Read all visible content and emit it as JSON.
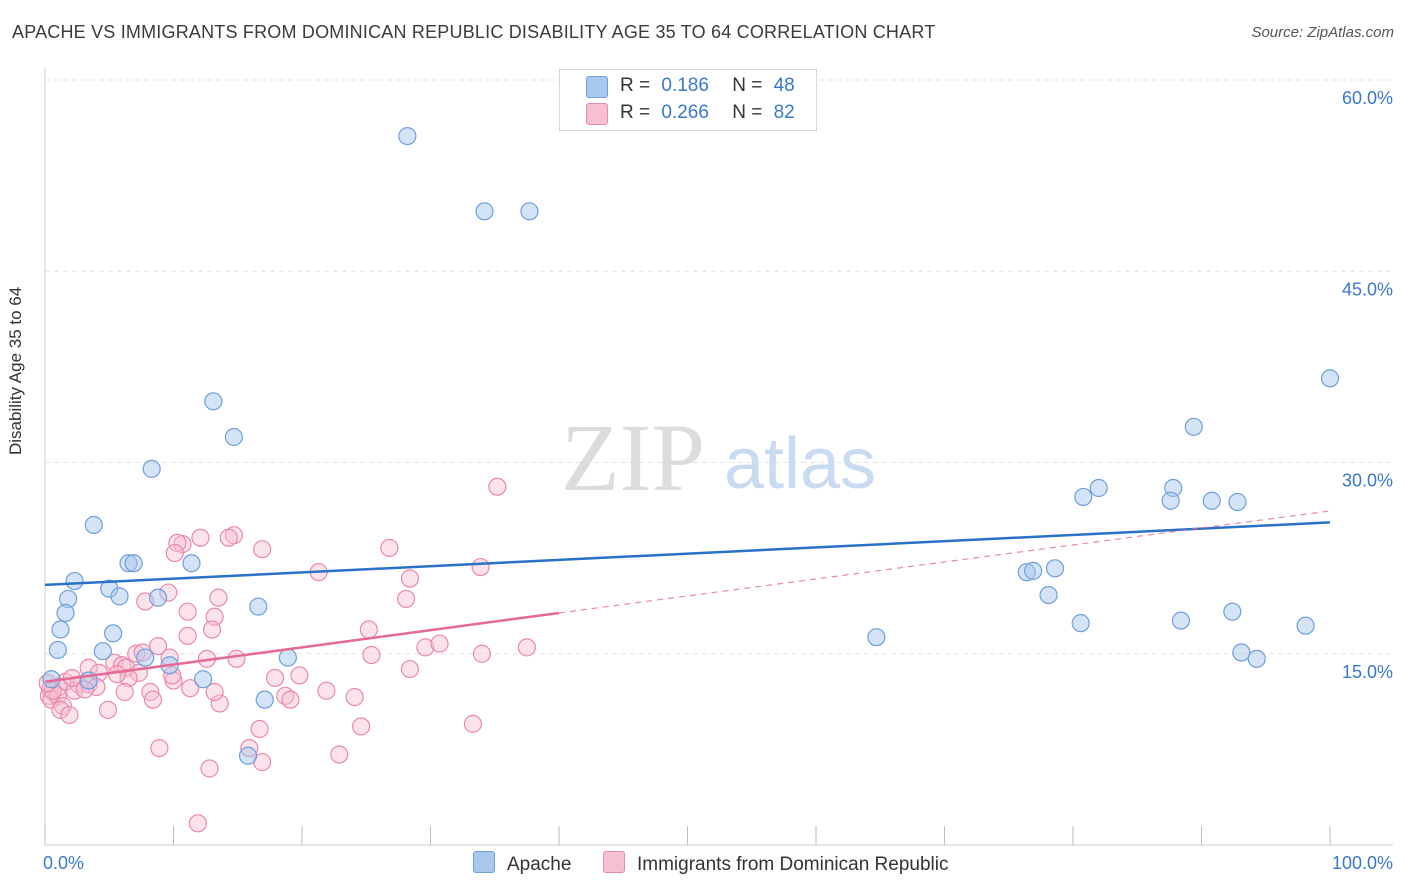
{
  "title": "APACHE VS IMMIGRANTS FROM DOMINICAN REPUBLIC DISABILITY AGE 35 TO 64 CORRELATION CHART",
  "source": "Source: ZipAtlas.com",
  "watermark": {
    "zip": "ZIP",
    "atlas": "atlas"
  },
  "colors": {
    "apache_fill": "#a9c8ee",
    "apache_stroke": "#6f9fdc",
    "apache_line": "#2a72c8",
    "dom_fill": "#f6bfd2",
    "dom_stroke": "#e98aab",
    "dom_line": "#e56b96",
    "axis_text": "#3a78c9"
  },
  "legend": {
    "r_label": "R =",
    "n_label": "N =",
    "apache": {
      "r": "0.186",
      "n": "48"
    },
    "dominican": {
      "r": "0.266",
      "n": "82"
    }
  },
  "chart_data": {
    "type": "scatter",
    "title": "APACHE VS IMMIGRANTS FROM DOMINICAN REPUBLIC DISABILITY AGE 35 TO 64 CORRELATION CHART",
    "xlabel": "",
    "ylabel": "Disability Age 35 to 64",
    "xlim": [
      0,
      100
    ],
    "ylim": [
      0,
      60
    ],
    "x_tick_labels": [
      "0.0%",
      "100.0%"
    ],
    "y_ticks": [
      15,
      30,
      45,
      60
    ],
    "y_tick_labels": [
      "15.0%",
      "30.0%",
      "45.0%",
      "60.0%"
    ],
    "grid": true,
    "series": [
      {
        "name": "Apache",
        "r": 0.186,
        "n": 48,
        "trend": {
          "x": [
            0,
            100
          ],
          "y": [
            20.4,
            25.3
          ]
        },
        "points": [
          [
            28.2,
            55.6
          ],
          [
            34.2,
            49.7
          ],
          [
            37.7,
            49.7
          ],
          [
            100.0,
            36.6
          ],
          [
            13.1,
            34.8
          ],
          [
            14.7,
            32.0
          ],
          [
            8.3,
            29.5
          ],
          [
            89.4,
            32.8
          ],
          [
            82.0,
            28.0
          ],
          [
            80.8,
            27.3
          ],
          [
            87.8,
            28.0
          ],
          [
            87.6,
            27.0
          ],
          [
            90.8,
            27.0
          ],
          [
            92.8,
            26.9
          ],
          [
            3.8,
            25.1
          ],
          [
            6.5,
            22.1
          ],
          [
            6.9,
            22.1
          ],
          [
            11.4,
            22.1
          ],
          [
            2.3,
            20.7
          ],
          [
            5.0,
            20.1
          ],
          [
            1.8,
            19.3
          ],
          [
            5.8,
            19.5
          ],
          [
            8.8,
            19.4
          ],
          [
            1.6,
            18.2
          ],
          [
            16.6,
            18.7
          ],
          [
            78.1,
            19.6
          ],
          [
            76.4,
            21.4
          ],
          [
            76.9,
            21.5
          ],
          [
            78.6,
            21.7
          ],
          [
            1.2,
            16.9
          ],
          [
            5.3,
            16.6
          ],
          [
            1.0,
            15.3
          ],
          [
            4.5,
            15.2
          ],
          [
            7.8,
            14.7
          ],
          [
            9.7,
            14.1
          ],
          [
            18.9,
            14.7
          ],
          [
            12.3,
            13.0
          ],
          [
            64.7,
            16.3
          ],
          [
            80.6,
            17.4
          ],
          [
            88.4,
            17.6
          ],
          [
            92.4,
            18.3
          ],
          [
            98.1,
            17.2
          ],
          [
            93.1,
            15.1
          ],
          [
            94.3,
            14.6
          ],
          [
            0.5,
            13.0
          ],
          [
            3.4,
            12.9
          ],
          [
            17.1,
            11.4
          ],
          [
            15.8,
            7.0
          ]
        ]
      },
      {
        "name": "Immigrants from Dominican Republic",
        "r": 0.266,
        "n": 82,
        "trend": {
          "x": [
            0,
            40
          ],
          "y": [
            12.8,
            18.2
          ]
        },
        "trend_extended": {
          "x": [
            40,
            100
          ],
          "y": [
            18.2,
            26.2
          ]
        },
        "points": [
          [
            35.2,
            28.1
          ],
          [
            14.7,
            24.3
          ],
          [
            14.3,
            24.1
          ],
          [
            12.1,
            24.1
          ],
          [
            10.7,
            23.6
          ],
          [
            10.3,
            23.7
          ],
          [
            16.9,
            23.2
          ],
          [
            26.8,
            23.3
          ],
          [
            10.1,
            22.9
          ],
          [
            33.9,
            21.8
          ],
          [
            21.3,
            21.4
          ],
          [
            28.4,
            20.9
          ],
          [
            9.6,
            19.8
          ],
          [
            13.5,
            19.4
          ],
          [
            7.8,
            19.1
          ],
          [
            28.1,
            19.3
          ],
          [
            11.1,
            18.3
          ],
          [
            13.2,
            17.9
          ],
          [
            13.0,
            16.9
          ],
          [
            25.2,
            16.9
          ],
          [
            11.1,
            16.4
          ],
          [
            8.8,
            15.6
          ],
          [
            29.6,
            15.5
          ],
          [
            30.7,
            15.8
          ],
          [
            37.5,
            15.5
          ],
          [
            25.4,
            14.9
          ],
          [
            34.0,
            15.0
          ],
          [
            7.1,
            15.0
          ],
          [
            7.6,
            15.1
          ],
          [
            9.7,
            14.7
          ],
          [
            12.6,
            14.6
          ],
          [
            14.9,
            14.6
          ],
          [
            5.4,
            14.3
          ],
          [
            6.0,
            14.1
          ],
          [
            6.3,
            13.9
          ],
          [
            3.4,
            13.9
          ],
          [
            4.2,
            13.5
          ],
          [
            7.3,
            13.5
          ],
          [
            6.5,
            13.1
          ],
          [
            28.4,
            13.8
          ],
          [
            19.8,
            13.3
          ],
          [
            17.9,
            13.1
          ],
          [
            1.6,
            12.8
          ],
          [
            2.6,
            12.6
          ],
          [
            3.4,
            12.6
          ],
          [
            4.0,
            12.4
          ],
          [
            10.0,
            12.9
          ],
          [
            0.4,
            12.2
          ],
          [
            1.1,
            12.4
          ],
          [
            2.3,
            12.1
          ],
          [
            3.1,
            12.2
          ],
          [
            6.2,
            12.0
          ],
          [
            8.2,
            12.0
          ],
          [
            11.3,
            12.3
          ],
          [
            18.7,
            11.7
          ],
          [
            19.1,
            11.4
          ],
          [
            21.9,
            12.1
          ],
          [
            24.1,
            11.6
          ],
          [
            0.3,
            11.7
          ],
          [
            0.5,
            11.4
          ],
          [
            1.0,
            11.7
          ],
          [
            8.4,
            11.4
          ],
          [
            13.6,
            11.1
          ],
          [
            1.4,
            10.9
          ],
          [
            1.2,
            10.6
          ],
          [
            1.9,
            10.2
          ],
          [
            4.9,
            10.6
          ],
          [
            16.7,
            9.1
          ],
          [
            24.6,
            9.3
          ],
          [
            33.3,
            9.5
          ],
          [
            15.9,
            7.6
          ],
          [
            22.9,
            7.1
          ],
          [
            16.9,
            6.5
          ],
          [
            8.9,
            7.6
          ],
          [
            12.8,
            6.0
          ],
          [
            11.9,
            1.7
          ],
          [
            0.6,
            12.1
          ],
          [
            2.1,
            13.1
          ],
          [
            5.6,
            13.4
          ],
          [
            9.9,
            13.3
          ],
          [
            13.2,
            12.0
          ],
          [
            0.2,
            12.7
          ]
        ]
      }
    ]
  },
  "bottom_legend": {
    "apache": "Apache",
    "dominican": "Immigrants from Dominican Republic"
  }
}
